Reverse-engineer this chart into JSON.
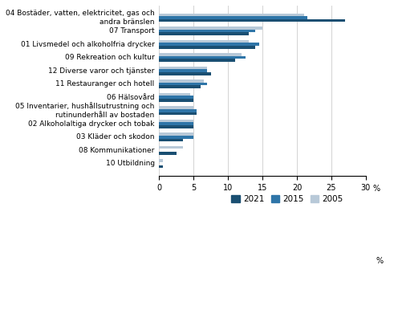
{
  "categories": [
    "04 Bostäder, vatten, elektricitet, gas och\nandra bränslen",
    "07 Transport",
    "01 Livsmedel och alkoholfria drycker",
    "09 Rekreation och kultur",
    "12 Diverse varor och tjänster",
    "11 Restauranger och hotell",
    "06 Hälsovård",
    "05 Inventarier, hushållsutrustning och\nrutinunderhåll av bostaden",
    "02 Alkoholaltiga drycker och tobak",
    "03 Kläder och skodon",
    "08 Kommunikationer",
    "10 Utbildning"
  ],
  "values_2021": [
    27.0,
    13.0,
    14.0,
    11.0,
    7.5,
    6.0,
    5.0,
    5.5,
    5.0,
    3.5,
    2.5,
    0.5
  ],
  "values_2015": [
    21.5,
    14.0,
    14.5,
    12.5,
    7.0,
    7.0,
    5.0,
    5.5,
    5.0,
    5.0,
    0.0,
    0.0
  ],
  "values_2005": [
    21.0,
    15.0,
    13.0,
    12.0,
    7.0,
    6.5,
    4.5,
    5.0,
    5.0,
    5.0,
    3.5,
    0.5
  ],
  "color_2021": "#1a4f72",
  "color_2015": "#2e75a8",
  "color_2005": "#b8c9d8",
  "xlim": [
    0,
    30
  ],
  "xticks": [
    0,
    5,
    10,
    15,
    20,
    25,
    30
  ],
  "xlabel": "%",
  "legend_labels": [
    "2021",
    "2015",
    "2005"
  ],
  "bar_height": 0.22,
  "label_fontsize": 6.5,
  "tick_fontsize": 7.0,
  "legend_fontsize": 7.5
}
